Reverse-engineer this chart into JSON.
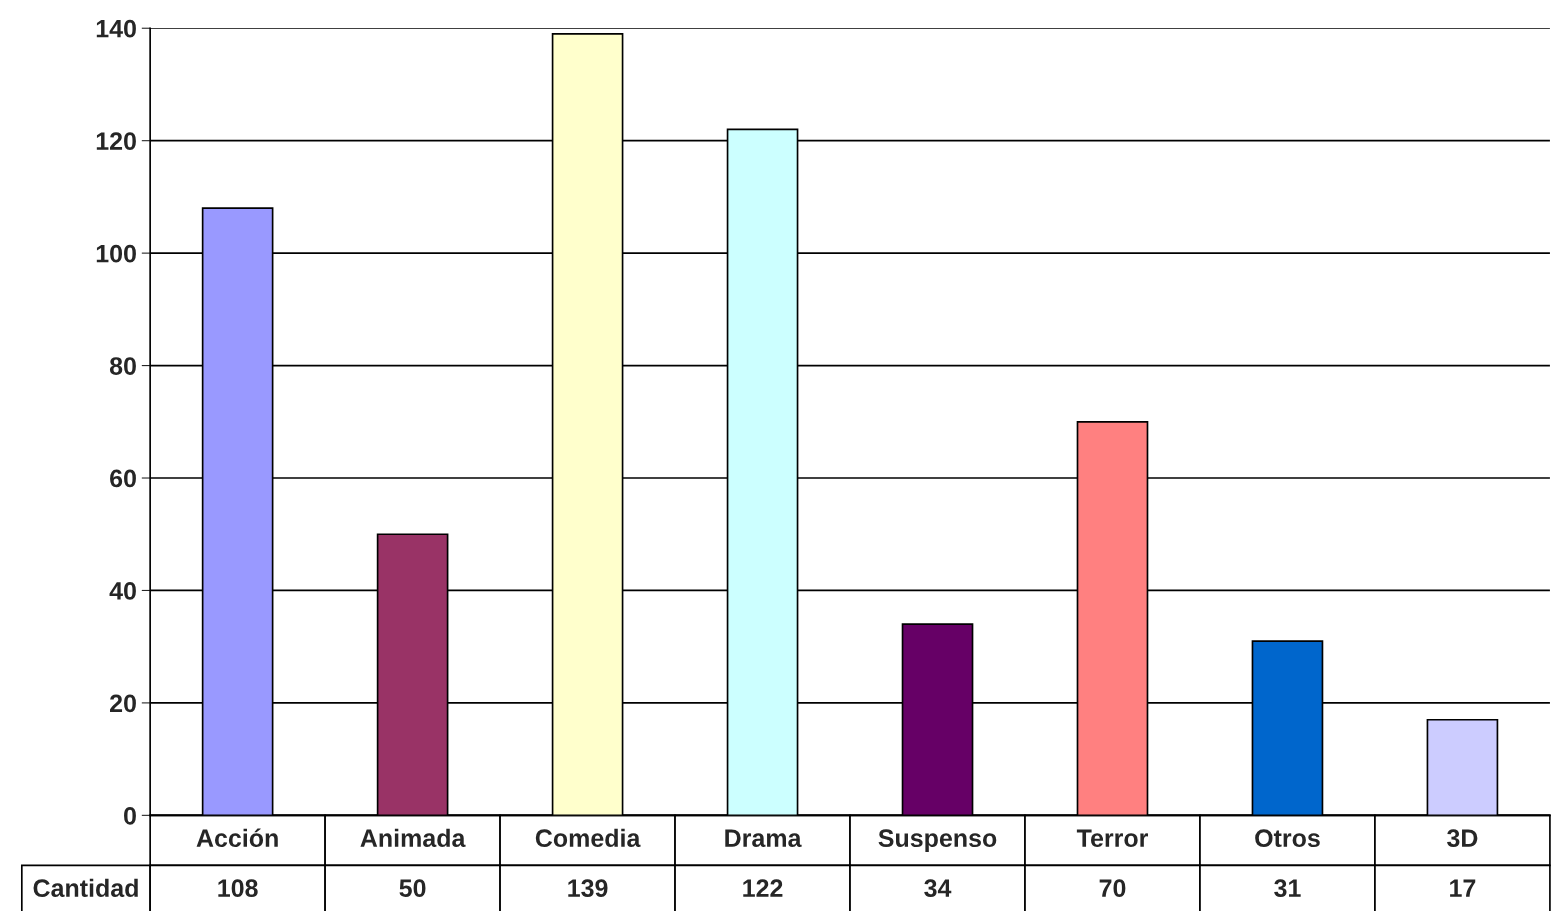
{
  "chart_data": {
    "type": "bar",
    "categories": [
      "Acción",
      "Animada",
      "Comedia",
      "Drama",
      "Suspenso",
      "Terror",
      "Otros",
      "3D"
    ],
    "series": [
      {
        "name": "Cantidad",
        "values": [
          108,
          50,
          139,
          122,
          34,
          70,
          31,
          17
        ],
        "colors": [
          "#9999ff",
          "#993366",
          "#ffffcc",
          "#ccffff",
          "#660066",
          "#ff8080",
          "#0066cc",
          "#ccccff"
        ]
      }
    ],
    "ylim": [
      0,
      140
    ],
    "yticks": [
      0,
      20,
      40,
      60,
      80,
      100,
      120,
      140
    ],
    "grid": "y",
    "data_labels": true,
    "legend": false
  }
}
